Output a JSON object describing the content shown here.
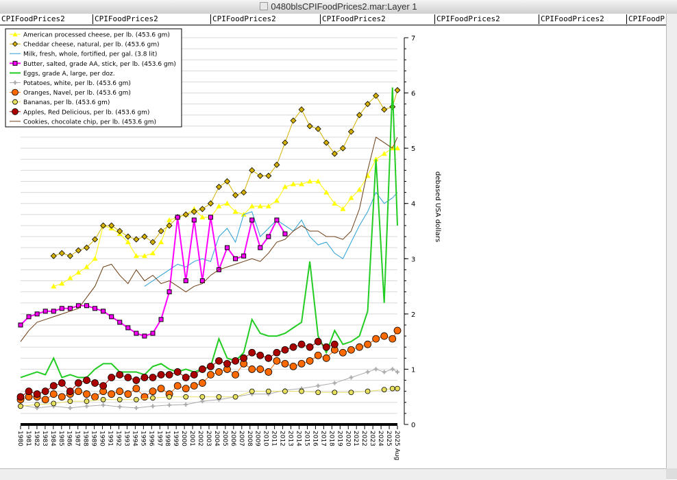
{
  "window": {
    "title": "0480blsCPIFoodPrices2.mar:Layer 1"
  },
  "tabs": [
    "CPIFoodPrices2",
    "CPIFoodPrices2",
    "CPIFoodPrices2",
    "CPIFoodPrices2",
    "CPIFoodPrices2",
    "CPIFoodPrices2",
    "CPIFoodPrices2"
  ],
  "colors": {
    "cheese_amer": "#ffff00",
    "cheese_ched": "#d4b000",
    "milk": "#2a9fd6",
    "butter": "#ff00ff",
    "eggs": "#22cc22",
    "potatoes": "#aaaaaa",
    "oranges": "#ff6a00",
    "bananas": "#e8e060",
    "apples": "#aa0000",
    "cookies": "#6b3a10"
  },
  "chart_data": {
    "type": "line",
    "title": "",
    "xlabel": "",
    "ylabel": "debased USA dollars",
    "ylim": [
      0,
      7
    ],
    "yticks": [
      0,
      1,
      2,
      3,
      4,
      5,
      6,
      7
    ],
    "xlim": [
      1980,
      2025.6
    ],
    "xticks": [
      "1980",
      "1981",
      "1982",
      "1983",
      "1984",
      "1985",
      "1986",
      "1987",
      "1988",
      "1989",
      "1990",
      "1991",
      "1992",
      "1993",
      "1994",
      "1995",
      "1996",
      "1997",
      "1998",
      "1999",
      "2000",
      "2001",
      "2002",
      "2003",
      "2004",
      "2005",
      "2006",
      "2007",
      "2008",
      "2009",
      "2010",
      "2011",
      "2012",
      "2013",
      "2014",
      "2015",
      "2016",
      "2017",
      "2018",
      "2019",
      "2020",
      "2021",
      "2022",
      "2023",
      "2024",
      "2025",
      "2025 Aug"
    ],
    "grid": "horizontal",
    "legend": "top-left",
    "series": [
      {
        "name": "American processed cheese, per lb. (453.6 gm)",
        "key": "cheese_amer",
        "marker": "tri",
        "x": [
          1984,
          1985,
          1986,
          1987,
          1988,
          1989,
          1990,
          1991,
          1992,
          1993,
          1994,
          1995,
          1996,
          1997,
          1998,
          1999,
          2000,
          2001,
          2002,
          2003,
          2004,
          2005,
          2006,
          2007,
          2008,
          2009,
          2010,
          2011,
          2012,
          2013,
          2014,
          2015,
          2016,
          2017,
          2018,
          2019,
          2020,
          2021,
          2022,
          2023,
          2024,
          2025,
          2025.6
        ],
        "y": [
          2.5,
          2.55,
          2.65,
          2.75,
          2.85,
          3.0,
          3.6,
          3.55,
          3.45,
          3.3,
          3.05,
          3.05,
          3.1,
          3.3,
          3.7,
          3.75,
          3.8,
          3.9,
          3.75,
          3.75,
          3.95,
          4.0,
          3.85,
          3.8,
          3.95,
          3.95,
          3.95,
          4.05,
          4.3,
          4.35,
          4.35,
          4.4,
          4.4,
          4.2,
          4.0,
          3.9,
          4.1,
          4.25,
          4.5,
          4.8,
          4.9,
          5.0,
          5.0
        ]
      },
      {
        "name": "Cheddar cheese, natural, per lb. (453.6 gm)",
        "key": "cheese_ched",
        "marker": "diamond",
        "x": [
          1984,
          1985,
          1986,
          1987,
          1988,
          1989,
          1990,
          1991,
          1992,
          1993,
          1994,
          1995,
          1996,
          1997,
          1998,
          1999,
          2000,
          2001,
          2002,
          2003,
          2004,
          2005,
          2006,
          2007,
          2008,
          2009,
          2010,
          2011,
          2012,
          2013,
          2014,
          2015,
          2016,
          2017,
          2018,
          2019,
          2020,
          2021,
          2022,
          2023,
          2024,
          2025,
          2025.6
        ],
        "y": [
          3.05,
          3.1,
          3.05,
          3.15,
          3.2,
          3.35,
          3.6,
          3.6,
          3.5,
          3.4,
          3.35,
          3.4,
          3.3,
          3.5,
          3.6,
          3.75,
          3.8,
          3.85,
          3.9,
          4.0,
          4.3,
          4.4,
          4.15,
          4.2,
          4.6,
          4.5,
          4.5,
          4.7,
          5.1,
          5.5,
          5.7,
          5.4,
          5.35,
          5.1,
          4.9,
          5.0,
          5.3,
          5.6,
          5.8,
          5.95,
          5.7,
          5.75,
          6.05
        ]
      },
      {
        "name": "Milk, fresh, whole, fortified, per gal. (3.8 lit)",
        "key": "milk",
        "marker": "none",
        "x": [
          1995,
          1996,
          1997,
          1998,
          1999,
          2000,
          2001,
          2002,
          2003,
          2004,
          2005,
          2006,
          2007,
          2008,
          2009,
          2010,
          2011,
          2012,
          2013,
          2014,
          2015,
          2016,
          2017,
          2018,
          2019,
          2020,
          2021,
          2022,
          2023,
          2024,
          2025,
          2025.6
        ],
        "y": [
          2.5,
          2.6,
          2.7,
          2.8,
          2.9,
          2.85,
          2.95,
          3.0,
          2.95,
          3.4,
          3.55,
          3.3,
          3.8,
          3.85,
          3.4,
          3.55,
          3.7,
          3.6,
          3.5,
          3.7,
          3.4,
          3.25,
          3.3,
          3.1,
          3.0,
          3.3,
          3.6,
          3.85,
          4.2,
          4.0,
          4.1,
          4.2
        ]
      },
      {
        "name": "Butter, salted, grade AA, stick, per lb. (453.6 gm)",
        "key": "butter",
        "marker": "square",
        "x": [
          1980,
          1981,
          1982,
          1983,
          1984,
          1985,
          1986,
          1987,
          1988,
          1989,
          1990,
          1991,
          1992,
          1993,
          1994,
          1995,
          1996,
          1997,
          1998,
          1999,
          2000,
          2001,
          2002,
          2003,
          2004,
          2005,
          2006,
          2007,
          2008,
          2009,
          2010,
          2011,
          2012
        ],
        "y": [
          1.8,
          1.95,
          2.0,
          2.05,
          2.05,
          2.1,
          2.1,
          2.15,
          2.15,
          2.1,
          2.05,
          1.95,
          1.85,
          1.75,
          1.65,
          1.6,
          1.65,
          1.9,
          2.4,
          3.75,
          2.6,
          3.7,
          2.6,
          3.75,
          2.8,
          3.2,
          3.0,
          3.05,
          3.7,
          3.2,
          3.4,
          3.7,
          3.45
        ]
      },
      {
        "name": "Eggs, grade A, large, per doz.",
        "key": "eggs",
        "marker": "none",
        "x": [
          1980,
          1981,
          1982,
          1983,
          1984,
          1985,
          1986,
          1987,
          1988,
          1989,
          1990,
          1991,
          1992,
          1993,
          1994,
          1995,
          1996,
          1997,
          1998,
          1999,
          2000,
          2001,
          2002,
          2003,
          2004,
          2005,
          2006,
          2007,
          2008,
          2009,
          2010,
          2011,
          2012,
          2013,
          2014,
          2015,
          2016,
          2017,
          2018,
          2019,
          2020,
          2021,
          2022,
          2023,
          2024,
          2025,
          2025.6
        ],
        "y": [
          0.85,
          0.9,
          0.95,
          0.9,
          1.2,
          0.85,
          0.9,
          0.85,
          0.85,
          1.0,
          1.1,
          1.1,
          0.95,
          0.95,
          0.95,
          0.9,
          1.05,
          1.1,
          1.0,
          0.95,
          1.0,
          0.95,
          1.0,
          1.05,
          1.55,
          1.2,
          1.15,
          1.3,
          1.9,
          1.65,
          1.6,
          1.6,
          1.65,
          1.75,
          1.85,
          2.95,
          1.6,
          1.3,
          1.7,
          1.45,
          1.5,
          1.6,
          2.05,
          4.8,
          2.2,
          6.1,
          3.6
        ]
      },
      {
        "name": "Potatoes, white, per lb. (453.6 gm)",
        "key": "potatoes",
        "marker": "plus",
        "x": [
          1980,
          1982,
          1984,
          1986,
          1988,
          1990,
          1992,
          1994,
          1996,
          1998,
          2000,
          2002,
          2004,
          2006,
          2008,
          2010,
          2012,
          2014,
          2016,
          2018,
          2020,
          2022,
          2023,
          2024,
          2025,
          2025.6
        ],
        "y": [
          0.35,
          0.3,
          0.33,
          0.3,
          0.33,
          0.35,
          0.32,
          0.3,
          0.33,
          0.35,
          0.36,
          0.42,
          0.45,
          0.5,
          0.55,
          0.55,
          0.62,
          0.65,
          0.7,
          0.75,
          0.85,
          0.95,
          1.0,
          0.95,
          1.0,
          0.95
        ]
      },
      {
        "name": "Oranges, Navel, per lb. (453.6 gm)",
        "key": "oranges",
        "marker": "circle",
        "x": [
          1980,
          1981,
          1982,
          1983,
          1984,
          1985,
          1986,
          1987,
          1988,
          1989,
          1990,
          1991,
          1992,
          1993,
          1994,
          1995,
          1996,
          1997,
          1998,
          1999,
          2000,
          2001,
          2002,
          2003,
          2004,
          2005,
          2006,
          2007,
          2008,
          2009,
          2010,
          2011,
          2012,
          2013,
          2014,
          2015,
          2016,
          2017,
          2018,
          2019,
          2020,
          2021,
          2022,
          2023,
          2024,
          2025,
          2025.6
        ],
        "y": [
          0.45,
          0.5,
          0.5,
          0.45,
          0.55,
          0.5,
          0.55,
          0.6,
          0.55,
          0.5,
          0.6,
          0.55,
          0.6,
          0.55,
          0.65,
          0.5,
          0.6,
          0.65,
          0.55,
          0.7,
          0.65,
          0.7,
          0.75,
          0.9,
          0.95,
          1.0,
          0.9,
          1.1,
          1.0,
          1.0,
          0.95,
          1.15,
          1.1,
          1.05,
          1.1,
          1.15,
          1.25,
          1.2,
          1.35,
          1.3,
          1.35,
          1.4,
          1.45,
          1.55,
          1.6,
          1.55,
          1.7
        ]
      },
      {
        "name": "Bananas, per lb. (453.6 gm)",
        "key": "bananas",
        "marker": "circlecross",
        "x": [
          1980,
          1982,
          1984,
          1986,
          1988,
          1990,
          1992,
          1994,
          1996,
          1998,
          2000,
          2002,
          2004,
          2006,
          2008,
          2010,
          2012,
          2014,
          2016,
          2018,
          2020,
          2022,
          2024,
          2025,
          2025.6
        ],
        "y": [
          0.33,
          0.36,
          0.38,
          0.42,
          0.42,
          0.45,
          0.45,
          0.45,
          0.48,
          0.5,
          0.5,
          0.5,
          0.5,
          0.5,
          0.6,
          0.6,
          0.6,
          0.6,
          0.58,
          0.58,
          0.58,
          0.6,
          0.63,
          0.65,
          0.65
        ]
      },
      {
        "name": "Apples, Red Delicious, per lb. (453.6 gm)",
        "key": "apples",
        "marker": "circle",
        "x": [
          1980,
          1981,
          1982,
          1983,
          1984,
          1985,
          1986,
          1987,
          1988,
          1989,
          1990,
          1991,
          1992,
          1993,
          1994,
          1995,
          1996,
          1997,
          1998,
          1999,
          2000,
          2001,
          2002,
          2003,
          2004,
          2005,
          2006,
          2007,
          2008,
          2009,
          2010,
          2011,
          2012,
          2013,
          2014,
          2015,
          2016,
          2017,
          2018
        ],
        "y": [
          0.5,
          0.6,
          0.55,
          0.6,
          0.7,
          0.75,
          0.6,
          0.75,
          0.8,
          0.75,
          0.7,
          0.85,
          0.9,
          0.85,
          0.8,
          0.85,
          0.85,
          0.9,
          0.9,
          0.95,
          0.85,
          0.9,
          1.0,
          1.05,
          1.15,
          1.1,
          1.15,
          1.2,
          1.3,
          1.25,
          1.2,
          1.3,
          1.35,
          1.4,
          1.45,
          1.4,
          1.5,
          1.4,
          1.45
        ]
      },
      {
        "name": "Cookies, chocolate chip, per lb. (453.6 gm)",
        "key": "cookies",
        "marker": "none",
        "x": [
          1980,
          1981,
          1982,
          1983,
          1984,
          1985,
          1986,
          1987,
          1988,
          1989,
          1990,
          1991,
          1992,
          1993,
          1994,
          1995,
          1996,
          1997,
          1998,
          1999,
          2000,
          2001,
          2002,
          2003,
          2004,
          2005,
          2006,
          2007,
          2008,
          2009,
          2010,
          2011,
          2012,
          2013,
          2014,
          2015,
          2016,
          2017,
          2018,
          2019,
          2020,
          2021,
          2022,
          2023,
          2024,
          2025,
          2025.6
        ],
        "y": [
          1.5,
          1.7,
          1.85,
          1.9,
          1.95,
          2.0,
          2.05,
          2.1,
          2.3,
          2.5,
          2.85,
          2.9,
          2.7,
          2.55,
          2.8,
          2.6,
          2.7,
          2.55,
          2.6,
          2.5,
          2.4,
          2.5,
          2.55,
          2.7,
          2.8,
          2.85,
          2.9,
          2.95,
          3.0,
          2.95,
          3.1,
          3.3,
          3.35,
          3.5,
          3.6,
          3.5,
          3.5,
          3.4,
          3.4,
          3.35,
          3.5,
          3.9,
          4.6,
          5.2,
          5.1,
          5.0,
          5.2
        ]
      }
    ]
  }
}
